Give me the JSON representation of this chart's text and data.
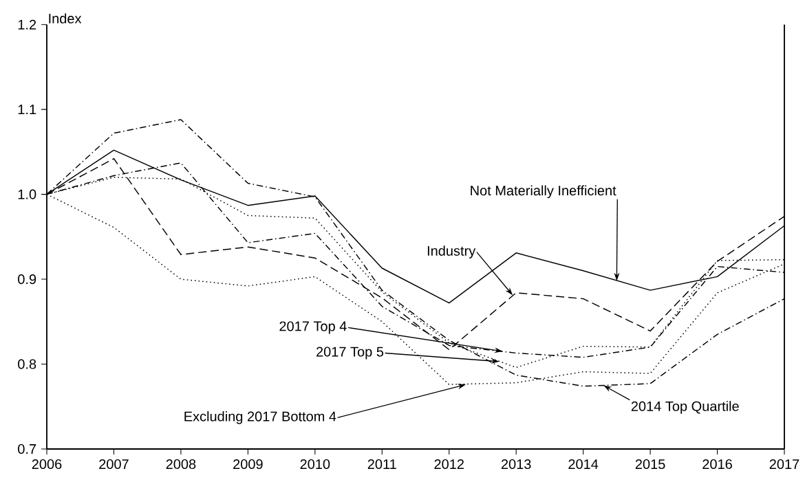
{
  "chart_data": {
    "type": "line",
    "ylabel": "Index",
    "x": [
      2006,
      2007,
      2008,
      2009,
      2010,
      2011,
      2012,
      2013,
      2014,
      2015,
      2016,
      2017
    ],
    "xlim": [
      2006,
      2017
    ],
    "xticks": [
      2006,
      2007,
      2008,
      2009,
      2010,
      2011,
      2012,
      2013,
      2014,
      2015,
      2016,
      2017
    ],
    "ylim": [
      0.7,
      1.2
    ],
    "yticks": [
      {
        "value": 0.7,
        "label": "0.7"
      },
      {
        "value": 0.8,
        "label": "0.8"
      },
      {
        "value": 0.9,
        "label": "0.9"
      },
      {
        "value": 1.0,
        "label": "1.0"
      },
      {
        "value": 1.1,
        "label": "1.1"
      },
      {
        "value": 1.2,
        "label": "1.2"
      }
    ],
    "grid": false,
    "marker": "none",
    "annotations": [
      {
        "text": "Not Materially Inefficient",
        "x": 2014.5,
        "y": 0.898
      },
      {
        "text": "Industry",
        "x": 2012.95,
        "y": 0.881
      },
      {
        "text": "2017 Top 4",
        "x": 2012.8,
        "y": 0.815
      },
      {
        "text": "2017 Top 5",
        "x": 2012.75,
        "y": 0.803
      },
      {
        "text": "Excluding 2017 Bottom 4",
        "x": 2012.25,
        "y": 0.776
      },
      {
        "text": "2014 Top Quartile",
        "x": 2014.3,
        "y": 0.775
      }
    ],
    "series": [
      {
        "color": "#000000",
        "line_style": "solid",
        "values": [
          1.0,
          1.052,
          1.017,
          0.987,
          0.998,
          0.913,
          0.872,
          0.931,
          0.91,
          0.887,
          0.903,
          0.963
        ]
      },
      {
        "color": "#000000",
        "line_style": "dashed",
        "values": [
          1.0,
          1.042,
          0.929,
          0.938,
          0.925,
          0.878,
          0.817,
          0.884,
          0.877,
          0.839,
          0.921,
          0.974
        ]
      },
      {
        "color": "#000000",
        "line_style": "dashdot",
        "values": [
          1.0,
          1.072,
          1.088,
          1.013,
          0.997,
          0.887,
          0.828,
          0.787,
          0.774,
          0.777,
          0.835,
          0.877
        ]
      },
      {
        "color": "#000000",
        "line_style": "dashdot",
        "values": [
          1.0,
          1.022,
          1.037,
          0.943,
          0.954,
          0.868,
          0.822,
          0.813,
          0.808,
          0.82,
          0.915,
          0.908
        ]
      },
      {
        "color": "#000000",
        "line_style": "dotted",
        "values": [
          1.0,
          1.02,
          1.018,
          0.975,
          0.972,
          0.885,
          0.825,
          0.796,
          0.821,
          0.82,
          0.922,
          0.923
        ]
      },
      {
        "color": "#000000",
        "line_style": "dotted",
        "values": [
          1.0,
          0.961,
          0.9,
          0.892,
          0.903,
          0.85,
          0.776,
          0.778,
          0.791,
          0.789,
          0.884,
          0.918
        ]
      }
    ]
  }
}
